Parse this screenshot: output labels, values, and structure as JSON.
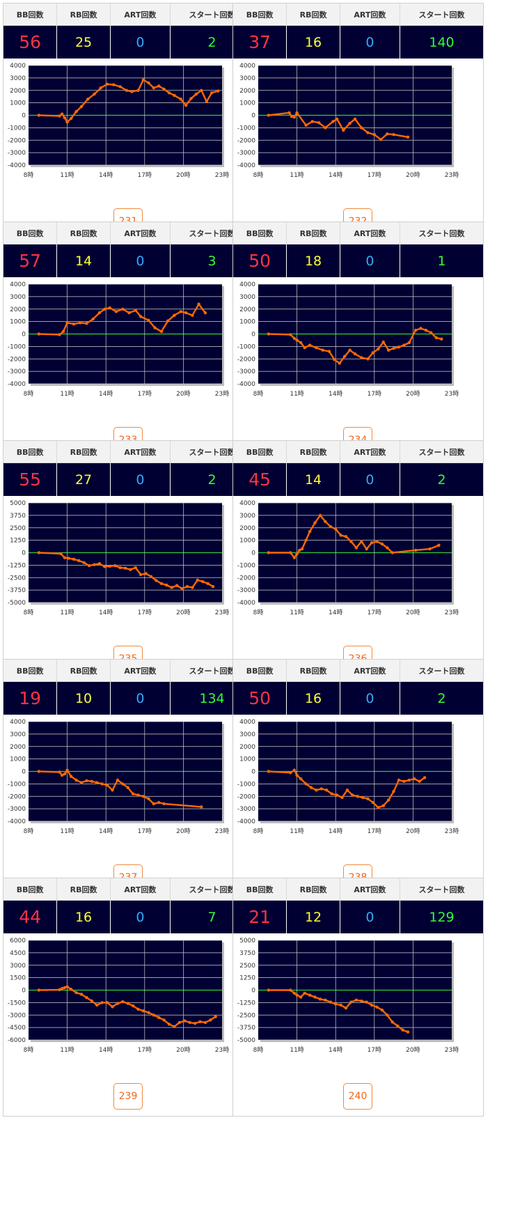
{
  "headers": {
    "bb": "BB回数",
    "rb": "RB回数",
    "art": "ART回数",
    "start": "スタート回数"
  },
  "colors": {
    "plot_bg": "#000033",
    "grid": "#d0d0d0",
    "zero_line": "#33cc33",
    "series": "#ff6a00",
    "bb": "#ff3344",
    "rb": "#ffff33",
    "art": "#33aaff",
    "start": "#33ff33"
  },
  "machines": [
    {
      "id": "231",
      "bb": "56",
      "rb": "25",
      "art": "0",
      "start": "2"
    },
    {
      "id": "232",
      "bb": "37",
      "rb": "16",
      "art": "0",
      "start": "140"
    },
    {
      "id": "233",
      "bb": "57",
      "rb": "14",
      "art": "0",
      "start": "3"
    },
    {
      "id": "234",
      "bb": "50",
      "rb": "18",
      "art": "0",
      "start": "1"
    },
    {
      "id": "235",
      "bb": "55",
      "rb": "27",
      "art": "0",
      "start": "2"
    },
    {
      "id": "236",
      "bb": "45",
      "rb": "14",
      "art": "0",
      "start": "2"
    },
    {
      "id": "237",
      "bb": "19",
      "rb": "10",
      "art": "0",
      "start": "134"
    },
    {
      "id": "238",
      "bb": "50",
      "rb": "16",
      "art": "0",
      "start": "2"
    },
    {
      "id": "239",
      "bb": "44",
      "rb": "16",
      "art": "0",
      "start": "7"
    },
    {
      "id": "240",
      "bb": "21",
      "rb": "12",
      "art": "0",
      "start": "129"
    }
  ],
  "chart_data": [
    {
      "type": "line",
      "machine": "231",
      "xlim": [
        8,
        23
      ],
      "x_ticks": [
        "8時",
        "11時",
        "14時",
        "17時",
        "20時",
        "23時"
      ],
      "ylim": [
        -4000,
        4000
      ],
      "y_ticks": [
        "4000",
        "3000",
        "2000",
        "1000",
        "0",
        "-1000",
        "-2000",
        "-3000",
        "-4000"
      ],
      "grid": true,
      "series": [
        {
          "x": [
            8.8,
            10.4,
            10.6,
            10.8,
            11.0,
            11.3,
            11.7,
            12.1,
            12.6,
            13.1,
            13.6,
            14.1,
            14.6,
            15.1,
            15.6,
            16.0,
            16.5,
            16.9,
            17.3,
            17.7,
            18.1,
            18.5,
            18.9,
            19.3,
            19.8,
            20.2,
            20.6,
            21.0,
            21.4,
            21.8,
            22.2,
            22.7
          ],
          "y": [
            0,
            -50,
            100,
            -200,
            -550,
            -250,
            300,
            700,
            1300,
            1700,
            2200,
            2500,
            2450,
            2300,
            2000,
            1900,
            2000,
            2850,
            2600,
            2200,
            2350,
            2100,
            1800,
            1600,
            1300,
            800,
            1350,
            1700,
            2000,
            1100,
            1800,
            1950
          ]
        }
      ]
    },
    {
      "type": "line",
      "machine": "232",
      "xlim": [
        8,
        23
      ],
      "x_ticks": [
        "8時",
        "11時",
        "14時",
        "17時",
        "20時",
        "23時"
      ],
      "ylim": [
        -4000,
        4000
      ],
      "y_ticks": [
        "4000",
        "3000",
        "2000",
        "1000",
        "0",
        "-1000",
        "-2000",
        "-3000",
        "-4000"
      ],
      "grid": true,
      "series": [
        {
          "x": [
            8.8,
            10.4,
            10.6,
            10.8,
            11.0,
            11.7,
            12.2,
            12.7,
            13.2,
            13.8,
            14.1,
            14.6,
            15.1,
            15.5,
            16.0,
            16.5,
            17.0,
            17.5,
            18.0,
            18.5,
            19.6
          ],
          "y": [
            0,
            200,
            -100,
            -150,
            200,
            -800,
            -500,
            -600,
            -1000,
            -500,
            -300,
            -1200,
            -650,
            -300,
            -1000,
            -1400,
            -1550,
            -1950,
            -1500,
            -1550,
            -1750
          ]
        }
      ]
    },
    {
      "type": "line",
      "machine": "233",
      "xlim": [
        8,
        23
      ],
      "x_ticks": [
        "8時",
        "11時",
        "14時",
        "17時",
        "20時",
        "23時"
      ],
      "ylim": [
        -4000,
        4000
      ],
      "y_ticks": [
        "4000",
        "3000",
        "2000",
        "1000",
        "0",
        "-1000",
        "-2000",
        "-3000",
        "-4000"
      ],
      "grid": true,
      "series": [
        {
          "x": [
            8.8,
            10.4,
            10.7,
            11.0,
            11.5,
            12.0,
            12.5,
            13.0,
            13.5,
            13.9,
            14.3,
            14.8,
            15.3,
            15.8,
            16.3,
            16.7,
            17.3,
            17.8,
            18.3,
            18.8,
            19.3,
            19.8,
            20.2,
            20.7,
            21.2,
            21.7
          ],
          "y": [
            0,
            -50,
            200,
            900,
            800,
            900,
            850,
            1200,
            1700,
            2000,
            2100,
            1800,
            2000,
            1700,
            1900,
            1400,
            1100,
            500,
            200,
            1050,
            1500,
            1800,
            1700,
            1500,
            2400,
            1700
          ]
        }
      ]
    },
    {
      "type": "line",
      "machine": "234",
      "xlim": [
        8,
        23
      ],
      "x_ticks": [
        "8時",
        "11時",
        "14時",
        "17時",
        "20時",
        "23時"
      ],
      "ylim": [
        -4000,
        4000
      ],
      "y_ticks": [
        "4000",
        "3000",
        "2000",
        "1000",
        "0",
        "-1000",
        "-2000",
        "-3000",
        "-4000"
      ],
      "grid": true,
      "series": [
        {
          "x": [
            8.8,
            10.5,
            10.8,
            11.0,
            11.3,
            11.6,
            12.0,
            12.5,
            13.0,
            13.5,
            13.9,
            14.3,
            14.7,
            15.1,
            15.5,
            16.0,
            16.5,
            16.9,
            17.3,
            17.7,
            18.1,
            18.5,
            18.9,
            19.3,
            19.7,
            20.2,
            20.6,
            21.0,
            21.4,
            21.8,
            22.2
          ],
          "y": [
            0,
            -50,
            -350,
            -500,
            -700,
            -1100,
            -900,
            -1100,
            -1300,
            -1400,
            -2050,
            -2350,
            -1800,
            -1300,
            -1600,
            -1900,
            -2000,
            -1500,
            -1200,
            -650,
            -1300,
            -1150,
            -1050,
            -900,
            -700,
            300,
            450,
            300,
            100,
            -300,
            -400
          ]
        }
      ]
    },
    {
      "type": "line",
      "machine": "235",
      "xlim": [
        8,
        23
      ],
      "x_ticks": [
        "8時",
        "11時",
        "14時",
        "17時",
        "20時",
        "23時"
      ],
      "ylim": [
        -5000,
        5000
      ],
      "y_ticks": [
        "5000",
        "3750",
        "2500",
        "1250",
        "0",
        "-1250",
        "-2500",
        "-3750",
        "-5000"
      ],
      "grid": true,
      "series": [
        {
          "x": [
            8.8,
            10.5,
            10.8,
            11.1,
            11.5,
            11.9,
            12.3,
            12.7,
            13.1,
            13.5,
            13.9,
            14.3,
            14.7,
            15.1,
            15.5,
            15.9,
            16.3,
            16.7,
            17.1,
            17.5,
            17.9,
            18.3,
            18.7,
            19.1,
            19.5,
            19.9,
            20.3,
            20.7,
            21.1,
            21.5,
            21.9,
            22.3
          ],
          "y": [
            0,
            -100,
            -500,
            -550,
            -650,
            -800,
            -1000,
            -1300,
            -1200,
            -1100,
            -1400,
            -1350,
            -1300,
            -1500,
            -1550,
            -1700,
            -1500,
            -2200,
            -2100,
            -2400,
            -2800,
            -3100,
            -3250,
            -3500,
            -3300,
            -3600,
            -3400,
            -3500,
            -2750,
            -2900,
            -3100,
            -3400
          ]
        }
      ]
    },
    {
      "type": "line",
      "machine": "236",
      "xlim": [
        8,
        23
      ],
      "x_ticks": [
        "8時",
        "11時",
        "14時",
        "17時",
        "20時",
        "23時"
      ],
      "ylim": [
        -4000,
        4000
      ],
      "y_ticks": [
        "4000",
        "3000",
        "2000",
        "1000",
        "0",
        "-1000",
        "-2000",
        "-3000",
        "-4000"
      ],
      "grid": true,
      "series": [
        {
          "x": [
            8.8,
            10.5,
            10.8,
            11.0,
            11.2,
            11.4,
            11.7,
            12.0,
            12.4,
            12.8,
            13.2,
            13.6,
            14.0,
            14.4,
            14.8,
            15.2,
            15.6,
            16.0,
            16.4,
            16.8,
            17.2,
            17.6,
            18.0,
            18.4,
            20.2,
            21.3,
            22.0
          ],
          "y": [
            0,
            0,
            -400,
            -100,
            200,
            300,
            1000,
            1700,
            2400,
            3000,
            2500,
            2100,
            1900,
            1400,
            1300,
            900,
            400,
            900,
            300,
            800,
            900,
            700,
            400,
            0,
            200,
            300,
            600
          ]
        }
      ]
    },
    {
      "type": "line",
      "machine": "237",
      "xlim": [
        8,
        23
      ],
      "x_ticks": [
        "8時",
        "11時",
        "14時",
        "17時",
        "20時",
        "23時"
      ],
      "ylim": [
        -4000,
        4000
      ],
      "y_ticks": [
        "4000",
        "3000",
        "2000",
        "1000",
        "0",
        "-1000",
        "-2000",
        "-3000",
        "-4000"
      ],
      "grid": true,
      "series": [
        {
          "x": [
            8.8,
            10.4,
            10.6,
            10.8,
            11.0,
            11.3,
            11.7,
            12.1,
            12.5,
            12.9,
            13.3,
            13.7,
            14.1,
            14.5,
            14.9,
            15.3,
            15.7,
            16.1,
            16.5,
            16.9,
            17.3,
            17.7,
            18.1,
            18.5,
            21.4
          ],
          "y": [
            0,
            -50,
            -300,
            -200,
            100,
            -400,
            -700,
            -900,
            -750,
            -800,
            -900,
            -1000,
            -1100,
            -1500,
            -700,
            -1000,
            -1300,
            -1800,
            -1900,
            -2000,
            -2200,
            -2600,
            -2500,
            -2600,
            -2850
          ]
        }
      ]
    },
    {
      "type": "line",
      "machine": "238",
      "xlim": [
        8,
        23
      ],
      "x_ticks": [
        "8時",
        "11時",
        "14時",
        "17時",
        "20時",
        "23時"
      ],
      "ylim": [
        -4000,
        4000
      ],
      "y_ticks": [
        "4000",
        "3000",
        "2000",
        "1000",
        "0",
        "-1000",
        "-2000",
        "-3000",
        "-4000"
      ],
      "grid": true,
      "series": [
        {
          "x": [
            8.8,
            10.5,
            10.8,
            11.0,
            11.3,
            11.7,
            12.1,
            12.5,
            12.9,
            13.3,
            13.7,
            14.1,
            14.5,
            14.9,
            15.3,
            15.7,
            16.1,
            16.5,
            16.9,
            17.3,
            17.7,
            18.1,
            18.5,
            18.9,
            19.3,
            19.7,
            20.1,
            20.5,
            20.9
          ],
          "y": [
            0,
            -100,
            100,
            -300,
            -600,
            -1000,
            -1300,
            -1500,
            -1400,
            -1500,
            -1800,
            -1900,
            -2100,
            -1500,
            -1900,
            -2000,
            -2100,
            -2200,
            -2500,
            -2900,
            -2750,
            -2300,
            -1600,
            -700,
            -800,
            -700,
            -600,
            -800,
            -500
          ]
        }
      ]
    },
    {
      "type": "line",
      "machine": "239",
      "xlim": [
        8,
        23
      ],
      "x_ticks": [
        "8時",
        "11時",
        "14時",
        "17時",
        "20時",
        "23時"
      ],
      "ylim": [
        -6000,
        6000
      ],
      "y_ticks": [
        "6000",
        "4500",
        "3000",
        "1500",
        "0",
        "-1500",
        "-3000",
        "-4500",
        "-6000"
      ],
      "grid": true,
      "series": [
        {
          "x": [
            8.8,
            10.4,
            10.6,
            10.8,
            11.0,
            11.3,
            11.7,
            12.1,
            12.5,
            12.9,
            13.3,
            13.7,
            14.1,
            14.5,
            14.9,
            15.3,
            15.7,
            16.1,
            16.5,
            16.9,
            17.3,
            17.7,
            18.1,
            18.5,
            18.9,
            19.3,
            19.7,
            20.1,
            20.5,
            20.9,
            21.3,
            21.7,
            22.1,
            22.5
          ],
          "y": [
            0,
            50,
            200,
            300,
            400,
            100,
            -300,
            -500,
            -900,
            -1300,
            -1800,
            -1500,
            -1500,
            -2000,
            -1600,
            -1400,
            -1600,
            -1900,
            -2300,
            -2500,
            -2700,
            -3000,
            -3300,
            -3600,
            -4100,
            -4400,
            -3900,
            -3700,
            -3900,
            -4000,
            -3800,
            -3900,
            -3600,
            -3200
          ]
        }
      ]
    },
    {
      "type": "line",
      "machine": "240",
      "xlim": [
        8,
        23
      ],
      "x_ticks": [
        "8時",
        "11時",
        "14時",
        "17時",
        "20時",
        "23時"
      ],
      "ylim": [
        -5000,
        5000
      ],
      "y_ticks": [
        "5000",
        "3750",
        "2500",
        "1250",
        "0",
        "-1250",
        "-2500",
        "-3750",
        "-5000"
      ],
      "grid": true,
      "series": [
        {
          "x": [
            8.8,
            10.5,
            10.8,
            11.0,
            11.3,
            11.6,
            12.0,
            12.4,
            12.8,
            13.2,
            13.6,
            14.0,
            14.4,
            14.8,
            15.2,
            15.6,
            16.0,
            16.4,
            16.8,
            17.2,
            17.6,
            18.0,
            18.4,
            18.8,
            19.2,
            19.6
          ],
          "y": [
            0,
            0,
            -300,
            -500,
            -700,
            -300,
            -500,
            -700,
            -900,
            -1000,
            -1200,
            -1400,
            -1500,
            -1800,
            -1200,
            -1000,
            -1100,
            -1200,
            -1500,
            -1700,
            -2000,
            -2500,
            -3200,
            -3600,
            -4000,
            -4200
          ]
        }
      ]
    }
  ]
}
